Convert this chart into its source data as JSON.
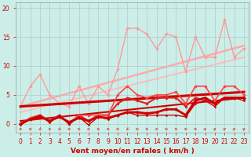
{
  "background_color": "#cceee8",
  "grid_color": "#aacccc",
  "xlabel": "Vent moyen/en rafales ( km/h )",
  "xlabel_color": "#cc0000",
  "tick_color": "#cc0000",
  "xlim": [
    -0.5,
    23.5
  ],
  "ylim": [
    -1.5,
    21
  ],
  "yticks": [
    0,
    5,
    10,
    15,
    20
  ],
  "xticks": [
    0,
    1,
    2,
    3,
    4,
    5,
    6,
    7,
    8,
    9,
    10,
    11,
    12,
    13,
    14,
    15,
    16,
    17,
    18,
    19,
    20,
    21,
    22,
    23
  ],
  "x": [
    0,
    1,
    2,
    3,
    4,
    5,
    6,
    7,
    8,
    9,
    10,
    11,
    12,
    13,
    14,
    15,
    16,
    17,
    18,
    19,
    20,
    21,
    22,
    23
  ],
  "line_gust": [
    3.0,
    6.5,
    8.5,
    5.0,
    3.5,
    3.0,
    6.5,
    3.5,
    6.5,
    5.0,
    9.5,
    16.5,
    16.5,
    15.5,
    13.0,
    15.5,
    15.0,
    9.0,
    15.0,
    11.5,
    11.5,
    18.0,
    11.5,
    13.0
  ],
  "line_gust_color": "#ff9999",
  "line_trend1_x": [
    0,
    23
  ],
  "line_trend1_y": [
    3.0,
    13.5
  ],
  "line_trend1_color": "#ffaaaa",
  "line_trend1_lw": 1.8,
  "line_trend2_x": [
    0,
    23
  ],
  "line_trend2_y": [
    2.0,
    11.5
  ],
  "line_trend2_color": "#ffbbbb",
  "line_trend2_lw": 1.4,
  "line_mean_zigzag": [
    0.0,
    1.0,
    1.5,
    0.5,
    1.5,
    0.0,
    1.5,
    1.5,
    1.5,
    1.5,
    5.0,
    6.5,
    5.0,
    4.5,
    5.0,
    5.0,
    5.5,
    3.5,
    6.5,
    6.5,
    4.0,
    6.5,
    6.5,
    5.0
  ],
  "line_mean_zigzag_color": "#ff4444",
  "line_mean_zigzag_lw": 1.2,
  "line_mean2": [
    0.0,
    1.0,
    1.5,
    0.5,
    1.5,
    0.0,
    1.5,
    0.5,
    1.5,
    1.5,
    3.5,
    4.5,
    4.0,
    3.5,
    4.5,
    4.5,
    4.5,
    3.0,
    4.5,
    4.0,
    3.5,
    4.5,
    4.5,
    4.5
  ],
  "line_mean2_color": "#dd2222",
  "line_mean2_lw": 1.5,
  "line_trend3_x": [
    0,
    23
  ],
  "line_trend3_y": [
    3.0,
    5.5
  ],
  "line_trend3_color": "#cc0000",
  "line_trend3_lw": 2.2,
  "line_trend4_x": [
    0,
    23
  ],
  "line_trend4_y": [
    0.5,
    4.5
  ],
  "line_trend4_color": "#cc0000",
  "line_trend4_lw": 1.5,
  "line_low_zigzag": [
    0.0,
    0.8,
    1.2,
    0.5,
    1.2,
    0.3,
    1.0,
    0.5,
    1.2,
    1.0,
    1.5,
    2.0,
    2.0,
    1.8,
    2.0,
    2.5,
    2.5,
    1.5,
    4.0,
    4.5,
    3.5,
    4.5,
    4.5,
    4.5
  ],
  "line_low_zigzag_color": "#cc0000",
  "line_low_zigzag_lw": 2.0,
  "line_bottom": [
    -0.2,
    0.8,
    1.5,
    0.2,
    1.5,
    -0.1,
    1.2,
    -0.2,
    1.2,
    0.8,
    1.5,
    2.0,
    1.5,
    1.5,
    1.5,
    1.5,
    1.5,
    1.2,
    3.5,
    4.0,
    3.0,
    4.5,
    4.5,
    4.0
  ],
  "line_bottom_color": "#cc0000",
  "line_bottom_lw": 1.0,
  "ms": 2.5,
  "arrow_color": "#dd4444",
  "arrow_angles": [
    90,
    90,
    225,
    90,
    225,
    270,
    90,
    270,
    90,
    90,
    270,
    225,
    90,
    90,
    270,
    90,
    90,
    90,
    90,
    45,
    45,
    45,
    45,
    45
  ]
}
